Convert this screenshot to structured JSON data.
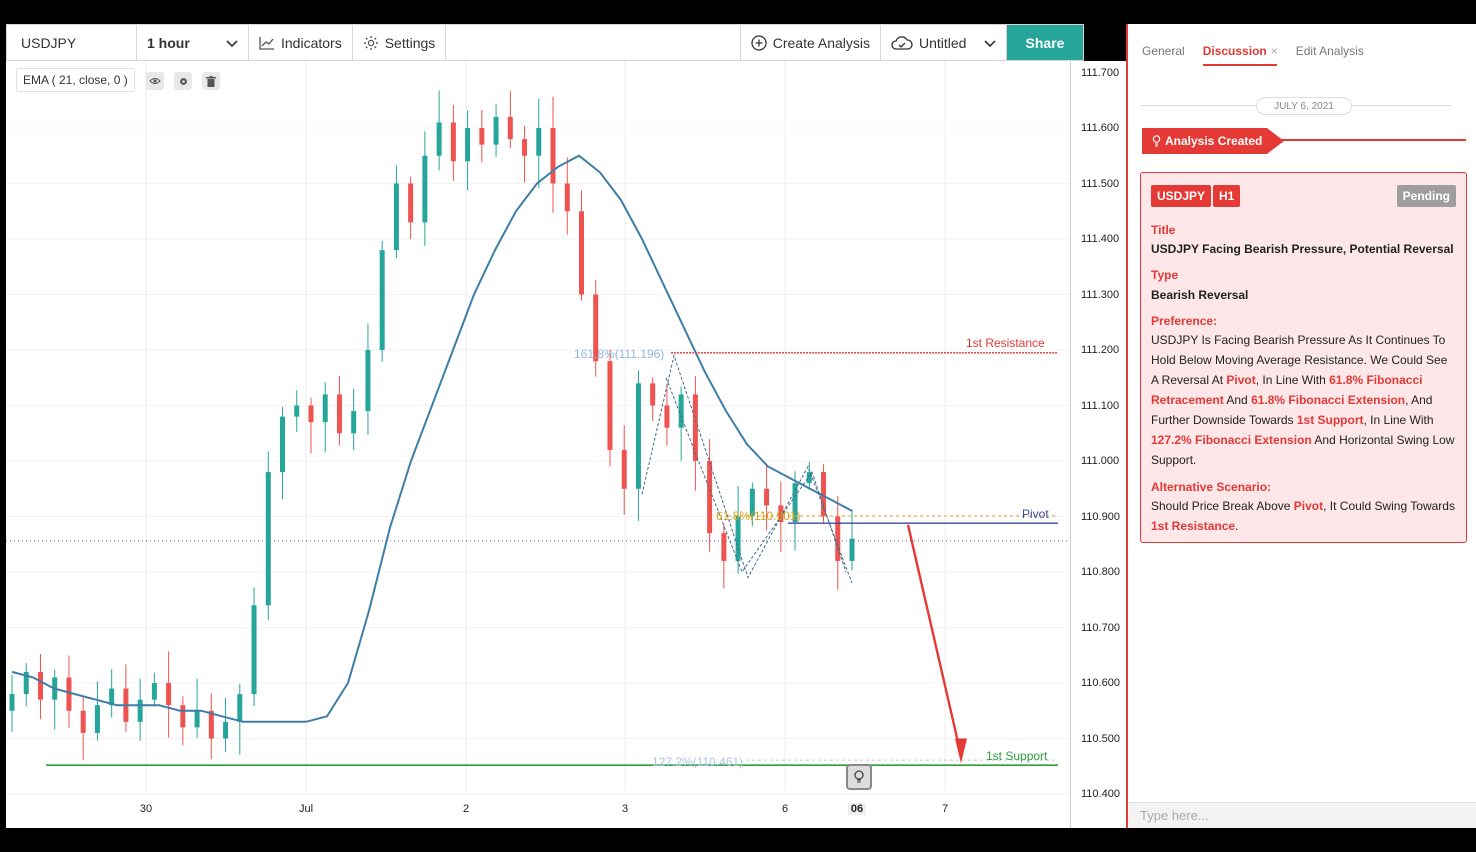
{
  "toolbar": {
    "symbol": "USDJPY",
    "interval": "1 hour",
    "indicators_label": "Indicators",
    "settings_label": "Settings",
    "create_analysis_label": "Create Analysis",
    "saved_state_label": "Untitled",
    "share_label": "Share"
  },
  "indicator": {
    "label": "EMA ( 21, close, 0 )"
  },
  "price_axis": {
    "top_partial": "111.700",
    "labels": [
      "111.600",
      "111.500",
      "111.400",
      "111.300",
      "111.200",
      "111.100",
      "111.000",
      "110.900",
      "110.800",
      "110.700",
      "110.600",
      "110.500",
      "110.400"
    ]
  },
  "time_axis": {
    "labels": [
      "30",
      "Jul",
      "2",
      "3",
      "6",
      "06",
      "7"
    ]
  },
  "annotations": {
    "resistance_label": "1st Resistance",
    "pivot_label": "Pivot",
    "support_label": "1st Support",
    "fib_extension_161": "161.8%(111.196)",
    "fib_retracement_61": "61.8%(110.901)",
    "fib_extension_127": "127.2%(110.461)"
  },
  "chart_data": {
    "type": "candlestick",
    "instrument": "USDJPY",
    "timeframe": "1 hour",
    "ylim": [
      110.4,
      111.72
    ],
    "x_ticks": [
      "30",
      "Jul",
      "2",
      "3",
      "6",
      "06",
      "7"
    ],
    "levels": [
      {
        "name": "1st Resistance",
        "value": 111.195,
        "color": "#e53935"
      },
      {
        "name": "Pivot",
        "value": 110.888,
        "color": "#3949ab"
      },
      {
        "name": "1st Support",
        "value": 110.452,
        "color": "#2e9e3a"
      },
      {
        "name": "161.8%(111.196)",
        "value": 111.196
      },
      {
        "name": "61.8%(110.901)",
        "value": 110.901
      },
      {
        "name": "127.2%(110.461)",
        "value": 110.461
      }
    ],
    "current_price": 110.856,
    "colors": {
      "up": "#26a69a",
      "down": "#ef5350",
      "ema": "#3d7ea6"
    },
    "close_path": [
      110.58,
      110.62,
      110.57,
      110.61,
      110.55,
      110.51,
      110.56,
      110.59,
      110.53,
      110.57,
      110.6,
      110.56,
      110.52,
      110.55,
      110.5,
      110.53,
      110.58,
      110.74,
      110.98,
      111.08,
      111.1,
      111.07,
      111.12,
      111.05,
      111.09,
      111.2,
      111.38,
      111.5,
      111.43,
      111.55,
      111.61,
      111.54,
      111.6,
      111.57,
      111.62,
      111.58,
      111.55,
      111.6,
      111.5,
      111.45,
      111.3,
      111.18,
      111.02,
      110.95,
      111.14,
      111.1,
      111.06,
      111.12,
      111.0,
      110.87,
      110.82,
      110.9,
      110.95,
      110.92,
      110.89,
      110.96,
      110.98,
      110.9,
      110.82,
      110.86
    ],
    "ema_path": [
      110.62,
      110.61,
      110.59,
      110.58,
      110.57,
      110.56,
      110.56,
      110.56,
      110.55,
      110.55,
      110.54,
      110.53,
      110.53,
      110.53,
      110.53,
      110.54,
      110.6,
      110.73,
      110.88,
      111.0,
      111.1,
      111.2,
      111.3,
      111.38,
      111.45,
      111.5,
      111.53,
      111.55,
      111.52,
      111.47,
      111.4,
      111.32,
      111.24,
      111.16,
      111.09,
      111.03,
      110.99,
      110.97,
      110.95,
      110.93,
      110.91
    ]
  },
  "panel": {
    "tabs": [
      {
        "label": "General"
      },
      {
        "label": "Discussion"
      },
      {
        "label": "Edit Analysis"
      }
    ],
    "tab_close": "×",
    "date": "JULY 6, 2021",
    "event": "Analysis Created",
    "card": {
      "symbol_badge": "USDJPY",
      "timeframe_badge": "H1",
      "status_badge": "Pending",
      "title_heading": "Title",
      "title": "USDJPY Facing Bearish Pressure, Potential Reversal",
      "type_heading": "Type",
      "type": "Bearish Reversal",
      "preference_heading": "Preference:",
      "preference": {
        "p1": "USDJPY Is Facing Bearish Pressure As It Continues To Hold Below Moving Average Resistance. We Could See A Reversal At ",
        "h1": "Pivot",
        "p2": ", In Line With ",
        "h2": "61.8% Fibonacci Retracement",
        "p3": " And ",
        "h3": "61.8% Fibonacci Extension",
        "p4": ", And Further Downside Towards ",
        "h4": "1st Support",
        "p5": ", In Line With ",
        "h5": "127.2% Fibonacci Extension",
        "p6": " And Horizontal Swing Low Support."
      },
      "alt_heading": "Alternative Scenario:",
      "alternative": {
        "p1": "Should Price Break Above ",
        "h1": "Pivot",
        "p2": ", It Could Swing Towards ",
        "h2": "1st Resistance",
        "p3": "."
      }
    },
    "input_placeholder": "Type here..."
  }
}
